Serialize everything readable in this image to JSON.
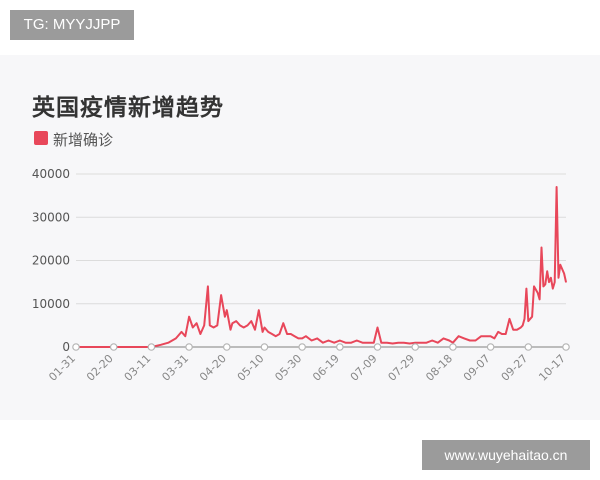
{
  "badge": {
    "text": "TG: MYYJJPP"
  },
  "watermark": {
    "text": "www.wuyehaitao.cn"
  },
  "colors": {
    "series": "#e8475a",
    "grid": "#dcdcdc",
    "axis": "#999999",
    "card": "#f7f7f9"
  },
  "chart_data": {
    "type": "line",
    "title": "英国疫情新增趋势",
    "legend": {
      "position": "top-left",
      "entries": [
        "新增确诊"
      ]
    },
    "xlabel": "",
    "ylabel": "",
    "ylim": [
      0,
      40000
    ],
    "y_ticks": [
      0,
      10000,
      20000,
      30000,
      40000
    ],
    "x_ticks": [
      "01-31",
      "02-20",
      "03-11",
      "03-31",
      "04-20",
      "05-10",
      "05-30",
      "06-19",
      "07-09",
      "07-29",
      "08-18",
      "09-07",
      "09-27",
      "10-17"
    ],
    "grid": true,
    "x_start_label": "01-31",
    "series": [
      {
        "name": "新增确诊",
        "color": "#e8475a",
        "x": [
          "01-31",
          "02-20",
          "03-11",
          "03-16",
          "03-20",
          "03-24",
          "03-27",
          "03-29",
          "03-31",
          "04-02",
          "04-04",
          "04-06",
          "04-08",
          "04-10",
          "04-11",
          "04-13",
          "04-15",
          "04-17",
          "04-19",
          "04-20",
          "04-22",
          "04-23",
          "04-25",
          "04-27",
          "04-29",
          "05-01",
          "05-03",
          "05-05",
          "05-07",
          "05-09",
          "05-10",
          "05-12",
          "05-14",
          "05-16",
          "05-18",
          "05-20",
          "05-22",
          "05-24",
          "05-26",
          "05-28",
          "05-30",
          "06-01",
          "06-04",
          "06-07",
          "06-10",
          "06-13",
          "06-16",
          "06-19",
          "06-22",
          "06-25",
          "06-28",
          "07-01",
          "07-04",
          "07-07",
          "07-09",
          "07-11",
          "07-14",
          "07-17",
          "07-20",
          "07-23",
          "07-26",
          "07-29",
          "08-01",
          "08-04",
          "08-07",
          "08-10",
          "08-13",
          "08-16",
          "08-18",
          "08-21",
          "08-24",
          "08-27",
          "08-30",
          "09-02",
          "09-05",
          "09-07",
          "09-09",
          "09-11",
          "09-13",
          "09-15",
          "09-17",
          "09-19",
          "09-21",
          "09-23",
          "09-24",
          "09-25",
          "09-26",
          "09-27",
          "09-29",
          "09-30",
          "10-02",
          "10-03",
          "10-04",
          "10-05",
          "10-06",
          "10-07",
          "10-08",
          "10-09",
          "10-10",
          "10-11",
          "10-12",
          "10-13",
          "10-14",
          "10-15",
          "10-16",
          "10-17"
        ],
        "y": [
          0,
          0,
          0,
          500,
          1000,
          2000,
          3500,
          2500,
          7000,
          4500,
          5500,
          3000,
          5000,
          14000,
          5000,
          4500,
          5000,
          12000,
          7000,
          8500,
          4000,
          5500,
          6000,
          5000,
          4500,
          5000,
          6000,
          4000,
          8500,
          3500,
          4500,
          3500,
          3000,
          2500,
          3000,
          5500,
          3000,
          3000,
          2500,
          2000,
          2000,
          2500,
          1500,
          2000,
          1000,
          1500,
          1000,
          1500,
          1000,
          1000,
          1500,
          1000,
          1000,
          1000,
          4500,
          1000,
          1000,
          800,
          1000,
          1000,
          800,
          1000,
          1000,
          1000,
          1500,
          1000,
          2000,
          1500,
          1000,
          2500,
          2000,
          1500,
          1500,
          2500,
          2500,
          2500,
          2000,
          3500,
          3000,
          3000,
          6500,
          4000,
          4000,
          4500,
          5000,
          6500,
          13500,
          6000,
          7000,
          14000,
          12500,
          11000,
          23000,
          14000,
          14500,
          17500,
          15000,
          16000,
          13500,
          15000,
          37000,
          16000,
          19000,
          18000,
          17000,
          15000
        ]
      }
    ]
  }
}
